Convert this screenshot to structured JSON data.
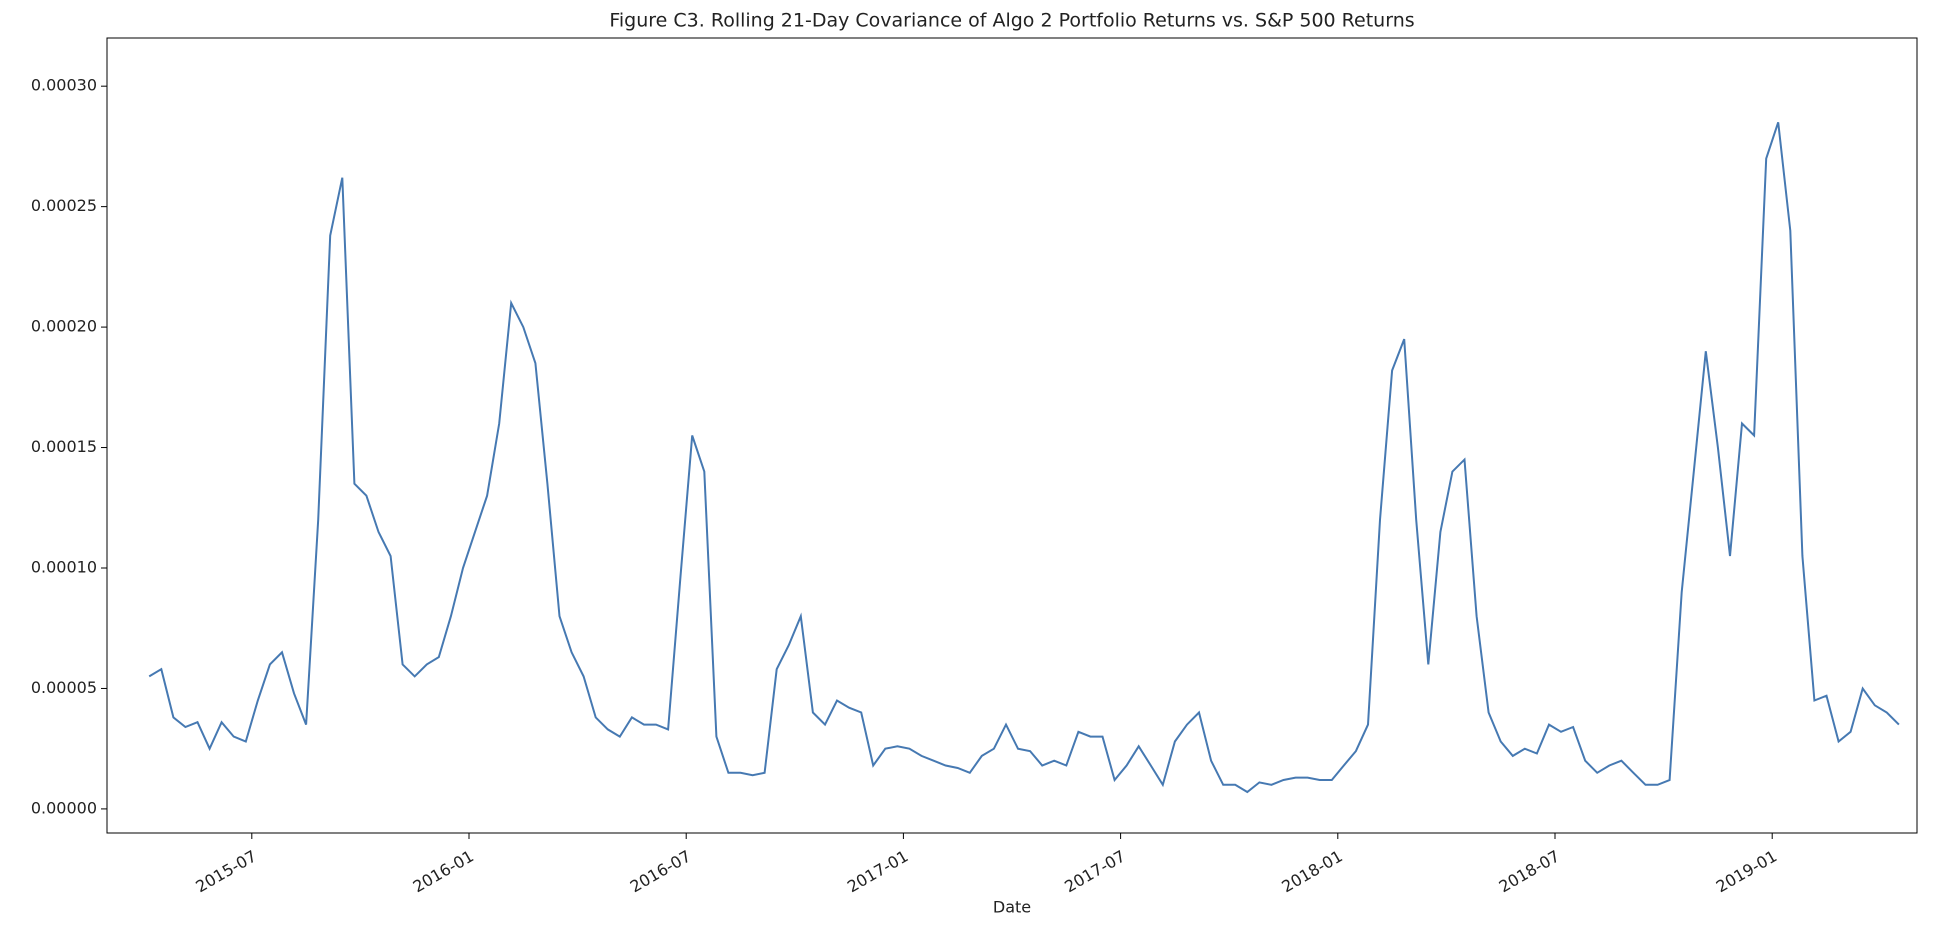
{
  "chart_data": {
    "type": "line",
    "title": "Figure C3. Rolling 21-Day Covariance of Algo 2 Portfolio Returns vs. S&P 500 Returns",
    "x_label": "Date",
    "x": [
      "2015-04",
      "2015-04",
      "2015-04",
      "2015-05",
      "2015-05",
      "2015-05",
      "2015-06",
      "2015-06",
      "2015-06",
      "2015-07",
      "2015-07",
      "2015-07",
      "2015-08",
      "2015-08",
      "2015-08",
      "2015-09",
      "2015-09",
      "2015-09",
      "2015-10",
      "2015-10",
      "2015-10",
      "2015-11",
      "2015-11",
      "2015-11",
      "2015-12",
      "2015-12",
      "2015-12",
      "2016-01",
      "2016-01",
      "2016-01",
      "2016-02",
      "2016-02",
      "2016-02",
      "2016-03",
      "2016-03",
      "2016-03",
      "2016-04",
      "2016-04",
      "2016-04",
      "2016-05",
      "2016-05",
      "2016-05",
      "2016-06",
      "2016-06",
      "2016-06",
      "2016-07",
      "2016-07",
      "2016-07",
      "2016-08",
      "2016-08",
      "2016-08",
      "2016-09",
      "2016-09",
      "2016-09",
      "2016-10",
      "2016-10",
      "2016-10",
      "2016-11",
      "2016-11",
      "2016-11",
      "2016-12",
      "2016-12",
      "2016-12",
      "2017-01",
      "2017-01",
      "2017-01",
      "2017-02",
      "2017-02",
      "2017-02",
      "2017-03",
      "2017-03",
      "2017-03",
      "2017-04",
      "2017-04",
      "2017-04",
      "2017-05",
      "2017-05",
      "2017-05",
      "2017-06",
      "2017-06",
      "2017-06",
      "2017-07",
      "2017-07",
      "2017-07",
      "2017-08",
      "2017-08",
      "2017-08",
      "2017-09",
      "2017-09",
      "2017-09",
      "2017-10",
      "2017-10",
      "2017-10",
      "2017-11",
      "2017-11",
      "2017-11",
      "2017-12",
      "2017-12",
      "2017-12",
      "2018-01",
      "2018-01",
      "2018-01",
      "2018-02",
      "2018-02",
      "2018-02",
      "2018-03",
      "2018-03",
      "2018-03",
      "2018-04",
      "2018-04",
      "2018-04",
      "2018-05",
      "2018-05",
      "2018-05",
      "2018-06",
      "2018-06",
      "2018-06",
      "2018-07",
      "2018-07",
      "2018-07",
      "2018-08",
      "2018-08",
      "2018-08",
      "2018-09",
      "2018-09",
      "2018-09",
      "2018-10",
      "2018-10",
      "2018-10",
      "2018-11",
      "2018-11",
      "2018-11",
      "2018-12",
      "2018-12",
      "2018-12",
      "2019-01",
      "2019-01",
      "2019-01",
      "2019-02",
      "2019-02",
      "2019-02",
      "2019-03",
      "2019-03",
      "2019-03",
      "2019-04",
      "2019-04"
    ],
    "series": [
      {
        "color": "#4679b2",
        "values": [
          5.5e-05,
          5.8e-05,
          3.8e-05,
          3.4e-05,
          3.6e-05,
          2.5e-05,
          3.6e-05,
          3e-05,
          2.8e-05,
          4.5e-05,
          6e-05,
          6.5e-05,
          4.8e-05,
          3.5e-05,
          0.00012,
          0.000238,
          0.000262,
          0.000135,
          0.00013,
          0.000115,
          0.000105,
          6e-05,
          5.5e-05,
          6e-05,
          6.3e-05,
          8e-05,
          0.0001,
          0.000115,
          0.00013,
          0.00016,
          0.00021,
          0.0002,
          0.000185,
          0.000135,
          8e-05,
          6.5e-05,
          5.5e-05,
          3.8e-05,
          3.3e-05,
          3e-05,
          3.8e-05,
          3.5e-05,
          3.5e-05,
          3.3e-05,
          9.5e-05,
          0.000155,
          0.00014,
          3e-05,
          1.5e-05,
          1.5e-05,
          1.4e-05,
          1.5e-05,
          5.8e-05,
          6.8e-05,
          8e-05,
          4e-05,
          3.5e-05,
          4.5e-05,
          4.2e-05,
          4e-05,
          1.8e-05,
          2.5e-05,
          2.6e-05,
          2.5e-05,
          2.2e-05,
          2e-05,
          1.8e-05,
          1.7e-05,
          1.5e-05,
          2.2e-05,
          2.5e-05,
          3.5e-05,
          2.5e-05,
          2.4e-05,
          1.8e-05,
          2e-05,
          1.8e-05,
          3.2e-05,
          3e-05,
          3e-05,
          1.2e-05,
          1.8e-05,
          2.6e-05,
          1.8e-05,
          1e-05,
          2.8e-05,
          3.5e-05,
          4e-05,
          2e-05,
          1e-05,
          1e-05,
          7e-06,
          1.1e-05,
          1e-05,
          1.2e-05,
          1.3e-05,
          1.3e-05,
          1.2e-05,
          1.2e-05,
          1.8e-05,
          2.4e-05,
          3.5e-05,
          0.00012,
          0.000182,
          0.000195,
          0.00012,
          6e-05,
          0.000115,
          0.00014,
          0.000145,
          8e-05,
          4e-05,
          2.8e-05,
          2.2e-05,
          2.5e-05,
          2.3e-05,
          3.5e-05,
          3.2e-05,
          3.4e-05,
          2e-05,
          1.5e-05,
          1.8e-05,
          2e-05,
          1.5e-05,
          1e-05,
          1e-05,
          1.2e-05,
          9e-05,
          0.00014,
          0.00019,
          0.00015,
          0.000105,
          0.00016,
          0.000155,
          0.00027,
          0.000285,
          0.00024,
          0.000105,
          4.5e-05,
          4.7e-05,
          2.8e-05,
          3.2e-05,
          5e-05,
          4.3e-05,
          4e-05,
          3.5e-05
        ]
      }
    ],
    "xlim": [
      "2015-03",
      "2019-05"
    ],
    "xticks": [
      "2015-07",
      "2016-01",
      "2016-07",
      "2017-01",
      "2017-07",
      "2018-01",
      "2018-07",
      "2019-01"
    ],
    "ylim": [
      -1e-05,
      0.00032
    ],
    "yticks": [
      {
        "value": 0,
        "label": "0.00000"
      },
      {
        "value": 5e-05,
        "label": "0.00005"
      },
      {
        "value": 0.0001,
        "label": "0.00010"
      },
      {
        "value": 0.00015,
        "label": "0.00015"
      },
      {
        "value": 0.0002,
        "label": "0.00020"
      },
      {
        "value": 0.00025,
        "label": "0.00025"
      },
      {
        "value": 0.0003,
        "label": "0.00030"
      }
    ]
  }
}
